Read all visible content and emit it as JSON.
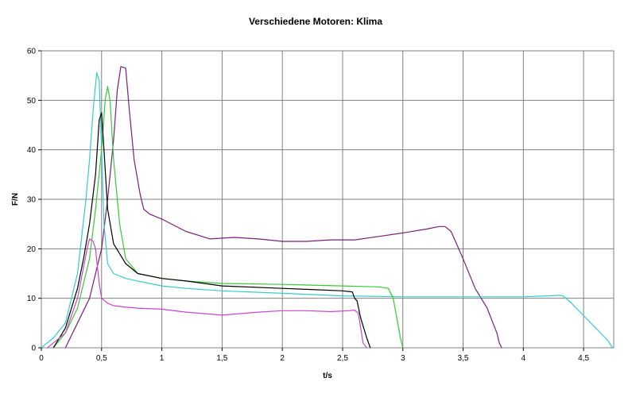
{
  "chart_data": {
    "type": "line",
    "title": "Verschiedene Motoren: Klima",
    "xlabel": "t/s",
    "ylabel": "F/N",
    "xlim": [
      0,
      4.75
    ],
    "ylim": [
      0,
      60
    ],
    "x_ticks": [
      "0",
      "0,5",
      "1",
      "1,5",
      "2",
      "2,5",
      "3",
      "3,5",
      "4",
      "4,5"
    ],
    "y_ticks": [
      "0",
      "10",
      "20",
      "30",
      "40",
      "50",
      "60"
    ],
    "grid": true,
    "legend": "none",
    "series": [
      {
        "color": "#7a1f7a",
        "x": [
          0.2,
          0.3,
          0.4,
          0.5,
          0.55,
          0.6,
          0.63,
          0.66,
          0.7,
          0.73,
          0.77,
          0.82,
          0.85,
          0.9,
          1.0,
          1.2,
          1.4,
          1.6,
          1.8,
          2.0,
          2.2,
          2.4,
          2.6,
          2.8,
          3.0,
          3.2,
          3.3,
          3.35,
          3.4,
          3.5,
          3.6,
          3.7,
          3.78,
          3.8,
          3.82
        ],
        "y": [
          0,
          5,
          10,
          20,
          30,
          42,
          52,
          56.8,
          56.5,
          48,
          38,
          31,
          28,
          27,
          26,
          23.5,
          22,
          22.3,
          22,
          21.5,
          21.5,
          21.8,
          21.8,
          22.5,
          23.2,
          24,
          24.5,
          24.5,
          23.5,
          18,
          12,
          8,
          3,
          1,
          0
        ]
      },
      {
        "color": "#33cccc",
        "x": [
          0.0,
          0.1,
          0.2,
          0.3,
          0.37,
          0.4,
          0.43,
          0.46,
          0.48,
          0.5,
          0.52,
          0.55,
          0.6,
          0.7,
          0.8,
          0.9,
          1.0,
          1.2,
          1.5,
          2.0,
          2.5,
          3.0,
          3.5,
          4.0,
          4.2,
          4.3,
          4.33,
          4.4,
          4.5,
          4.6,
          4.7,
          4.74
        ],
        "y": [
          0,
          2,
          5,
          15,
          30,
          38,
          48,
          55.6,
          54,
          40,
          25,
          17,
          15,
          14,
          13.5,
          13,
          12.5,
          12,
          11.5,
          11,
          10.5,
          10.3,
          10.3,
          10.3,
          10.5,
          10.6,
          10.5,
          9,
          6.5,
          4,
          1.5,
          0
        ]
      },
      {
        "color": "#33cc33",
        "x": [
          0.1,
          0.2,
          0.3,
          0.4,
          0.45,
          0.5,
          0.53,
          0.55,
          0.57,
          0.6,
          0.65,
          0.7,
          0.8,
          1.0,
          1.2,
          1.5,
          2.0,
          2.5,
          2.8,
          2.88,
          2.92,
          2.95,
          2.98,
          3.0
        ],
        "y": [
          0,
          3,
          8,
          18,
          28,
          40,
          50,
          52.8,
          50,
          38,
          25,
          18,
          15,
          14,
          13.5,
          13,
          12.8,
          12.5,
          12.3,
          12,
          10,
          6,
          2,
          0
        ]
      },
      {
        "color": "#000000",
        "x": [
          0.1,
          0.2,
          0.3,
          0.35,
          0.4,
          0.45,
          0.48,
          0.5,
          0.52,
          0.55,
          0.6,
          0.7,
          0.8,
          1.0,
          1.2,
          1.5,
          2.0,
          2.2,
          2.5,
          2.58,
          2.6,
          2.62,
          2.65,
          2.7,
          2.73
        ],
        "y": [
          0,
          4,
          12,
          18,
          25,
          35,
          46,
          47.5,
          40,
          28,
          21,
          17,
          15,
          14,
          13.5,
          12.5,
          12,
          11.8,
          11.5,
          11.3,
          10,
          9.5,
          6,
          2,
          0
        ]
      },
      {
        "color": "#cc44cc",
        "x": [
          0.05,
          0.1,
          0.2,
          0.3,
          0.38,
          0.4,
          0.43,
          0.45,
          0.48,
          0.5,
          0.55,
          0.6,
          0.7,
          0.8,
          1.0,
          1.2,
          1.4,
          1.5,
          1.6,
          1.8,
          2.0,
          2.2,
          2.4,
          2.55,
          2.6,
          2.63,
          2.65,
          2.67,
          2.7
        ],
        "y": [
          0,
          1,
          3,
          10,
          20,
          22,
          21.5,
          20,
          13,
          10,
          9,
          8.5,
          8.2,
          8,
          7.8,
          7.2,
          6.8,
          6.6,
          6.8,
          7.2,
          7.5,
          7.5,
          7.3,
          7.5,
          7.6,
          7,
          4,
          1,
          0
        ]
      }
    ]
  }
}
